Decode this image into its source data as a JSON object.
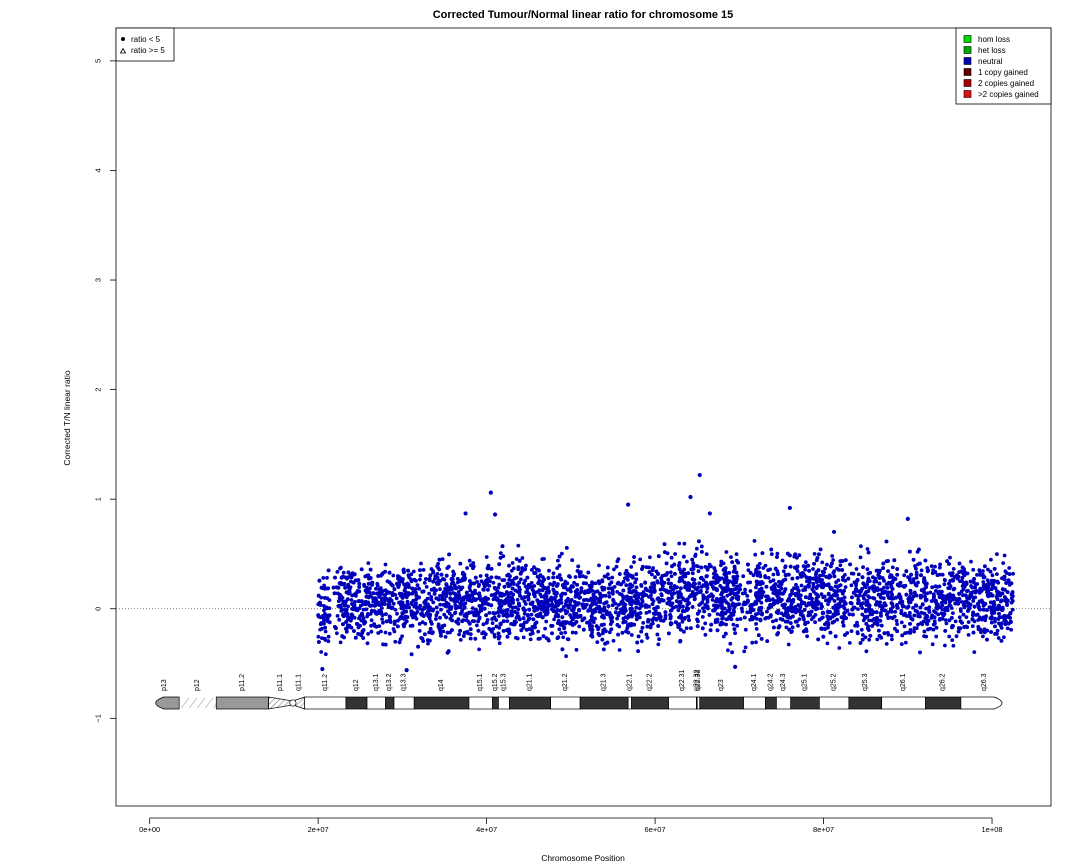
{
  "chart_data": {
    "type": "scatter",
    "title": "Corrected Tumour/Normal linear ratio for chromosome  15",
    "xlabel": "Chromosome Position",
    "ylabel": "Corrected T/N linear ratio",
    "xlim": [
      -4000000,
      107000000
    ],
    "ylim": [
      -1.8,
      5.3
    ],
    "x_ticks": [
      0,
      20000000,
      40000000,
      60000000,
      80000000,
      100000000
    ],
    "x_tick_labels": [
      "0e+00",
      "2e+07",
      "4e+07",
      "6e+07",
      "8e+07",
      "1e+08"
    ],
    "y_ticks": [
      -1,
      0,
      1,
      2,
      3,
      4,
      5
    ],
    "y_tick_labels": [
      "−1",
      "0",
      "1",
      "2",
      "3",
      "4",
      "5"
    ],
    "reference_line": 0,
    "data_range": {
      "start": 20000000,
      "end": 102500000
    },
    "density_envelope": [
      {
        "x": 20000000,
        "lo": -0.45,
        "hi": 0.35
      },
      {
        "x": 22500000,
        "lo": -0.35,
        "hi": 0.45
      },
      {
        "x": 30000000,
        "lo": -0.38,
        "hi": 0.45
      },
      {
        "x": 40000000,
        "lo": -0.32,
        "hi": 0.5
      },
      {
        "x": 50000000,
        "lo": -0.35,
        "hi": 0.45
      },
      {
        "x": 60000000,
        "lo": -0.33,
        "hi": 0.48
      },
      {
        "x": 65000000,
        "lo": -0.3,
        "hi": 0.62
      },
      {
        "x": 70000000,
        "lo": -0.35,
        "hi": 0.55
      },
      {
        "x": 80000000,
        "lo": -0.32,
        "hi": 0.58
      },
      {
        "x": 85000000,
        "lo": -0.35,
        "hi": 0.55
      },
      {
        "x": 95000000,
        "lo": -0.35,
        "hi": 0.55
      },
      {
        "x": 102500000,
        "lo": -0.38,
        "hi": 0.5
      }
    ],
    "outliers": [
      {
        "x": 65300000,
        "y": 1.22
      },
      {
        "x": 40500000,
        "y": 1.06
      },
      {
        "x": 64200000,
        "y": 1.02
      },
      {
        "x": 56800000,
        "y": 0.95
      },
      {
        "x": 76000000,
        "y": 0.92
      },
      {
        "x": 37500000,
        "y": 0.87
      },
      {
        "x": 41000000,
        "y": 0.86
      },
      {
        "x": 66500000,
        "y": 0.87
      },
      {
        "x": 90000000,
        "y": 0.82
      },
      {
        "x": 30500000,
        "y": -0.56
      },
      {
        "x": 20500000,
        "y": -0.55
      },
      {
        "x": 69500000,
        "y": -0.53
      }
    ],
    "legend_shapes": [
      {
        "label": "ratio < 5",
        "marker": "dot"
      },
      {
        "label": "ratio >= 5",
        "marker": "triangle"
      }
    ],
    "legend_status": [
      {
        "label": "hom loss",
        "color": "#00dd00"
      },
      {
        "label": "het loss",
        "color": "#00aa00"
      },
      {
        "label": "neutral",
        "color": "#0000bb"
      },
      {
        "label": "1 copy gained",
        "color": "#660000"
      },
      {
        "label": "2 copies gained",
        "color": "#aa0000"
      },
      {
        "label": ">2 copies gained",
        "color": "#dd1111"
      }
    ],
    "point_color": "#0000bb",
    "ideogram": {
      "y": -0.86,
      "bands": [
        {
          "name": "p13",
          "start": 0,
          "end": 3500000,
          "stain": "gpos50"
        },
        {
          "name": "p12",
          "start": 3500000,
          "end": 7900000,
          "stain": "stalk"
        },
        {
          "name": "p11.2",
          "start": 7900000,
          "end": 14100000,
          "stain": "gpos50"
        },
        {
          "name": "p11.1",
          "start": 14100000,
          "end": 17000000,
          "stain": "acen"
        },
        {
          "name": "q11.1",
          "start": 17000000,
          "end": 18400000,
          "stain": "acen"
        },
        {
          "name": "q11.2",
          "start": 18400000,
          "end": 23300000,
          "stain": "gneg"
        },
        {
          "name": "q12",
          "start": 23300000,
          "end": 25800000,
          "stain": "gpos100"
        },
        {
          "name": "q13.1",
          "start": 25800000,
          "end": 28000000,
          "stain": "gneg"
        },
        {
          "name": "q13.2",
          "start": 28000000,
          "end": 29000000,
          "stain": "gpos100"
        },
        {
          "name": "q13.3",
          "start": 29000000,
          "end": 31400000,
          "stain": "gneg"
        },
        {
          "name": "q14",
          "start": 31400000,
          "end": 37900000,
          "stain": "gpos100"
        },
        {
          "name": "q15.1",
          "start": 37900000,
          "end": 40700000,
          "stain": "gneg"
        },
        {
          "name": "q15.2",
          "start": 40700000,
          "end": 41400000,
          "stain": "gpos100"
        },
        {
          "name": "q15.3",
          "start": 41400000,
          "end": 42700000,
          "stain": "gneg"
        },
        {
          "name": "q21.1",
          "start": 42700000,
          "end": 47600000,
          "stain": "gpos100"
        },
        {
          "name": "q21.2",
          "start": 47600000,
          "end": 51100000,
          "stain": "gneg"
        },
        {
          "name": "q21.3",
          "start": 51100000,
          "end": 56800000,
          "stain": "gpos100"
        },
        {
          "name": "q22.1",
          "start": 56800000,
          "end": 57200000,
          "stain": "gneg"
        },
        {
          "name": "q22.2",
          "start": 57200000,
          "end": 61600000,
          "stain": "gpos100"
        },
        {
          "name": "q22.31",
          "start": 61600000,
          "end": 64900000,
          "stain": "gneg"
        },
        {
          "name": "q22.32",
          "start": 64900000,
          "end": 65000000,
          "stain": "gpos100"
        },
        {
          "name": "q22.33",
          "start": 65000000,
          "end": 65300000,
          "stain": "gneg"
        },
        {
          "name": "q23",
          "start": 65300000,
          "end": 70500000,
          "stain": "gpos100"
        },
        {
          "name": "q24.1",
          "start": 70500000,
          "end": 73100000,
          "stain": "gneg"
        },
        {
          "name": "q24.2",
          "start": 73100000,
          "end": 74400000,
          "stain": "gpos100"
        },
        {
          "name": "q24.3",
          "start": 74400000,
          "end": 76100000,
          "stain": "gneg"
        },
        {
          "name": "q25.1",
          "start": 76100000,
          "end": 79500000,
          "stain": "gpos100"
        },
        {
          "name": "q25.2",
          "start": 79500000,
          "end": 83000000,
          "stain": "gneg"
        },
        {
          "name": "q25.3",
          "start": 83000000,
          "end": 86900000,
          "stain": "gpos100"
        },
        {
          "name": "q26.1",
          "start": 86900000,
          "end": 92100000,
          "stain": "gneg"
        },
        {
          "name": "q26.2",
          "start": 92100000,
          "end": 96300000,
          "stain": "gpos100"
        },
        {
          "name": "q26.3",
          "start": 96300000,
          "end": 101900000,
          "stain": "gneg"
        }
      ]
    }
  }
}
